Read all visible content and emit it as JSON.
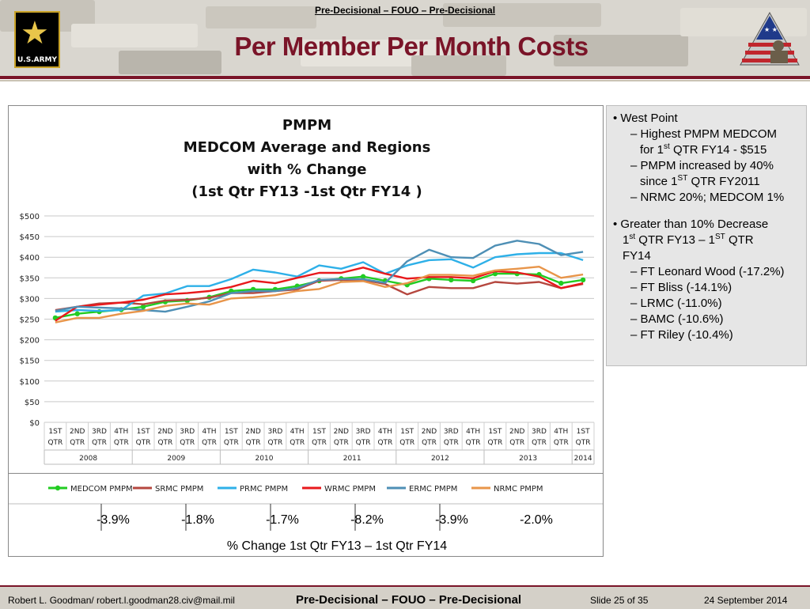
{
  "header": {
    "classification": "Pre-Decisional – FOUO – Pre-Decisional",
    "title": "Per Member Per Month Costs",
    "army_logo_text": "U.S.ARMY"
  },
  "icons": {
    "army_star": "star-icon",
    "flag_logo": "flag-soldier-icon"
  },
  "colors": {
    "title": "#7a1428",
    "medcom": "#22cc22",
    "srmc": "#b5473f",
    "prmc": "#2eb0e8",
    "wrmc": "#e8191c",
    "ermc": "#4e8fb5",
    "nrmc": "#e8954a"
  },
  "chart_data": {
    "type": "line",
    "title": [
      "PMPM",
      "MEDCOM Average and Regions",
      "with % Change",
      "(1st Qtr FY13 -1st Qtr FY14 )"
    ],
    "categories": [
      "1ST QTR",
      "2ND QTR",
      "3RD QTR",
      "4TH QTR",
      "1ST QTR",
      "2ND QTR",
      "3RD QTR",
      "4TH QTR",
      "1ST QTR",
      "2ND QTR",
      "3RD QTR",
      "4TH QTR",
      "1ST QTR",
      "2ND QTR",
      "3RD QTR",
      "4TH QTR",
      "1ST QTR",
      "2ND QTR",
      "3RD QTR",
      "4TH QTR",
      "1ST QTR",
      "2ND QTR",
      "3RD QTR",
      "4TH QTR",
      "1ST QTR"
    ],
    "category_lines": [
      [
        "1ST",
        "QTR"
      ],
      [
        "2ND",
        "QTR"
      ],
      [
        "3RD",
        "QTR"
      ],
      [
        "4TH",
        "QTR"
      ],
      [
        "1ST",
        "QTR"
      ],
      [
        "2ND",
        "QTR"
      ],
      [
        "3RD",
        "QTR"
      ],
      [
        "4TH",
        "QTR"
      ],
      [
        "1ST",
        "QTR"
      ],
      [
        "2ND",
        "QTR"
      ],
      [
        "3RD",
        "QTR"
      ],
      [
        "4TH",
        "QTR"
      ],
      [
        "1ST",
        "QTR"
      ],
      [
        "2ND",
        "QTR"
      ],
      [
        "3RD",
        "QTR"
      ],
      [
        "4TH",
        "QTR"
      ],
      [
        "1ST",
        "QTR"
      ],
      [
        "2ND",
        "QTR"
      ],
      [
        "3RD",
        "QTR"
      ],
      [
        "4TH",
        "QTR"
      ],
      [
        "1ST",
        "QTR"
      ],
      [
        "2ND",
        "QTR"
      ],
      [
        "3RD",
        "QTR"
      ],
      [
        "4TH",
        "QTR"
      ],
      [
        "1ST",
        "QTR"
      ]
    ],
    "year_groups": [
      {
        "label": "2008",
        "count": 4
      },
      {
        "label": "2009",
        "count": 4
      },
      {
        "label": "2010",
        "count": 4
      },
      {
        "label": "2011",
        "count": 4
      },
      {
        "label": "2012",
        "count": 4
      },
      {
        "label": "2013",
        "count": 4
      },
      {
        "label": "2014",
        "count": 1
      }
    ],
    "ylim": [
      0,
      500
    ],
    "yticks": [
      0,
      50,
      100,
      150,
      200,
      250,
      300,
      350,
      400,
      450,
      500
    ],
    "ytick_labels": [
      "$0",
      "$50",
      "$100",
      "$150",
      "$200",
      "$250",
      "$300",
      "$350",
      "$400",
      "$450",
      "$500"
    ],
    "grid": true,
    "legend_position": "bottom",
    "series": [
      {
        "name": "MEDCOM PMPM",
        "color": "#22cc22",
        "markers": true,
        "values": [
          253,
          263,
          268,
          273,
          280,
          292,
          295,
          303,
          318,
          322,
          322,
          330,
          343,
          348,
          353,
          343,
          333,
          348,
          345,
          343,
          360,
          360,
          358,
          337,
          345
        ]
      },
      {
        "name": "SRMC PMPM",
        "color": "#b5473f",
        "markers": false,
        "values": [
          272,
          280,
          288,
          290,
          286,
          295,
          297,
          302,
          313,
          313,
          318,
          322,
          343,
          345,
          345,
          335,
          310,
          328,
          325,
          325,
          340,
          336,
          340,
          325,
          335
        ]
      },
      {
        "name": "PRMC PMPM",
        "color": "#2eb0e8",
        "markers": false,
        "values": [
          268,
          272,
          270,
          272,
          307,
          312,
          330,
          330,
          347,
          370,
          363,
          353,
          380,
          372,
          388,
          360,
          380,
          393,
          395,
          375,
          400,
          407,
          410,
          410,
          393
        ]
      },
      {
        "name": "WRMC PMPM",
        "color": "#e8191c",
        "markers": false,
        "values": [
          246,
          280,
          285,
          290,
          297,
          310,
          313,
          318,
          328,
          343,
          337,
          350,
          362,
          362,
          375,
          360,
          348,
          352,
          352,
          349,
          366,
          363,
          353,
          325,
          337
        ]
      },
      {
        "name": "ERMC PMPM",
        "color": "#4e8fb5",
        "markers": false,
        "values": [
          270,
          280,
          278,
          276,
          272,
          268,
          280,
          293,
          313,
          318,
          318,
          325,
          345,
          347,
          347,
          338,
          390,
          418,
          400,
          398,
          428,
          440,
          432,
          405,
          413
        ]
      },
      {
        "name": "NRMC PMPM",
        "color": "#e8954a",
        "markers": false,
        "values": [
          242,
          253,
          253,
          263,
          270,
          282,
          288,
          285,
          300,
          303,
          308,
          318,
          323,
          340,
          342,
          328,
          337,
          357,
          357,
          355,
          368,
          372,
          377,
          350,
          358
        ]
      }
    ],
    "pct_change": [
      "-3.9%",
      "-1.8%",
      "-1.7%",
      "-8.2%",
      "-3.9%",
      "-2.0%"
    ],
    "pct_change_caption": "% Change 1st Qtr FY13 – 1st Qtr FY14"
  },
  "side_panel": {
    "b1": "West Point",
    "b1a_l1": "Highest PMPM MEDCOM",
    "b1a_l2_pre": "for 1",
    "b1a_l2_sup": "st",
    "b1a_l2_post": " QTR FY14 - $515",
    "b1b_l1": "PMPM increased by 40%",
    "b1b_l2_pre": "since 1",
    "b1b_l2_sup": "ST",
    "b1b_l2_post": " QTR FY2011",
    "b1c": "NRMC 20%; MEDCOM 1%",
    "b2_l1": "Greater than 10% Decrease",
    "b2_l2_a": "1",
    "b2_l2_sup1": "st",
    "b2_l2_b": " QTR FY13 – 1",
    "b2_l2_sup2": "ST",
    "b2_l2_c": "  QTR",
    "b2_l3": "FY14",
    "sub_items": [
      "FT Leonard Wood (-17.2%)",
      "FT Bliss (-14.1%)",
      "LRMC (-11.0%)",
      "BAMC (-10.6%)",
      "FT Riley (-10.4%)"
    ]
  },
  "footer": {
    "author": "Robert L. Goodman/ robert.l.goodman28.civ@mail.mil",
    "classification": "Pre-Decisional – FOUO – Pre-Decisional",
    "slide": "Slide 25 of 35",
    "date": "24 September 2014"
  }
}
